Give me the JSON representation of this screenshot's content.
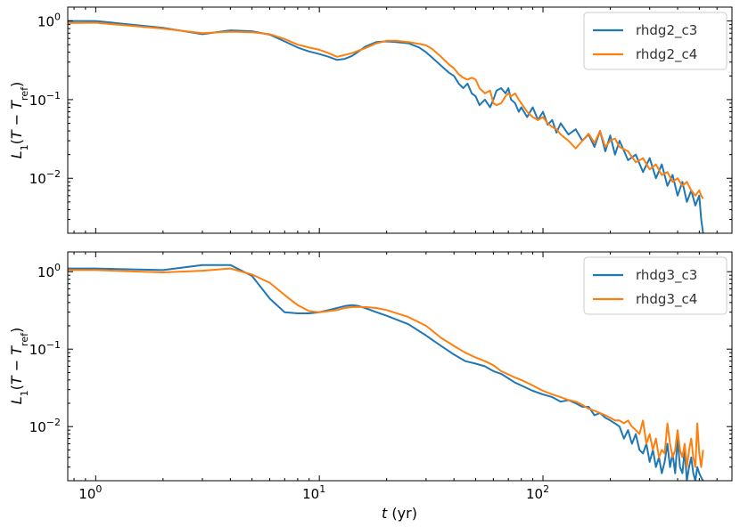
{
  "chart_data": [
    {
      "type": "line",
      "xscale": "log",
      "yscale": "log",
      "xlim": [
        0.75,
        700
      ],
      "ylim": [
        0.002,
        1.5
      ],
      "ylabel": "L1(T − Tref)",
      "xlabel": "",
      "legend_position": "top-right",
      "xticks": [
        {
          "value": 1,
          "base": "10",
          "exp": "0"
        },
        {
          "value": 10,
          "base": "10",
          "exp": "1"
        },
        {
          "value": 100,
          "base": "10",
          "exp": "2"
        }
      ],
      "yticks": [
        {
          "value": 0.01,
          "base": "10",
          "exp": "−2"
        },
        {
          "value": 0.1,
          "base": "10",
          "exp": "−1"
        },
        {
          "value": 1,
          "base": "10",
          "exp": "0"
        }
      ],
      "series": [
        {
          "name": "rhdg2_c3",
          "color": "#1f77b4",
          "x": [
            0.75,
            1,
            2,
            3,
            4,
            5,
            6,
            7,
            8,
            9,
            10,
            11,
            12,
            13,
            14,
            15,
            16,
            18,
            20,
            22,
            25,
            28,
            30,
            32,
            35,
            38,
            40,
            42,
            44,
            46,
            48,
            50,
            52,
            55,
            58,
            60,
            62,
            65,
            68,
            70,
            72,
            75,
            78,
            80,
            85,
            90,
            95,
            100,
            105,
            110,
            115,
            120,
            130,
            140,
            150,
            160,
            170,
            180,
            190,
            200,
            210,
            220,
            240,
            260,
            280,
            300,
            320,
            340,
            360,
            380,
            400,
            420,
            440,
            460,
            480,
            500,
            510,
            520
          ],
          "y": [
            1.0,
            1.0,
            0.82,
            0.68,
            0.76,
            0.74,
            0.67,
            0.55,
            0.46,
            0.41,
            0.38,
            0.35,
            0.32,
            0.33,
            0.36,
            0.41,
            0.47,
            0.54,
            0.55,
            0.54,
            0.52,
            0.46,
            0.4,
            0.34,
            0.27,
            0.22,
            0.2,
            0.16,
            0.14,
            0.16,
            0.12,
            0.11,
            0.085,
            0.1,
            0.08,
            0.1,
            0.13,
            0.14,
            0.12,
            0.14,
            0.1,
            0.09,
            0.07,
            0.08,
            0.06,
            0.08,
            0.055,
            0.07,
            0.048,
            0.055,
            0.038,
            0.05,
            0.036,
            0.042,
            0.03,
            0.036,
            0.025,
            0.04,
            0.022,
            0.035,
            0.02,
            0.03,
            0.017,
            0.02,
            0.012,
            0.018,
            0.01,
            0.015,
            0.008,
            0.011,
            0.006,
            0.009,
            0.005,
            0.007,
            0.0045,
            0.006,
            0.003,
            0.002
          ]
        },
        {
          "name": "rhdg2_c4",
          "color": "#ff7f0e",
          "x": [
            0.75,
            1,
            2,
            3,
            4,
            5,
            6,
            7,
            8,
            9,
            10,
            11,
            12,
            13,
            14,
            15,
            16,
            18,
            20,
            22,
            25,
            28,
            30,
            32,
            35,
            38,
            40,
            42,
            44,
            46,
            48,
            50,
            52,
            55,
            58,
            60,
            62,
            65,
            68,
            70,
            72,
            75,
            78,
            80,
            85,
            90,
            95,
            100,
            105,
            110,
            115,
            120,
            130,
            140,
            150,
            160,
            170,
            180,
            190,
            200,
            210,
            220,
            240,
            260,
            280,
            300,
            320,
            340,
            360,
            380,
            400,
            420,
            440,
            460,
            480,
            500,
            510,
            520
          ],
          "y": [
            0.94,
            0.95,
            0.8,
            0.7,
            0.73,
            0.72,
            0.68,
            0.59,
            0.5,
            0.46,
            0.43,
            0.39,
            0.35,
            0.37,
            0.39,
            0.42,
            0.45,
            0.52,
            0.56,
            0.56,
            0.54,
            0.51,
            0.49,
            0.44,
            0.35,
            0.28,
            0.25,
            0.21,
            0.19,
            0.18,
            0.19,
            0.18,
            0.14,
            0.12,
            0.13,
            0.09,
            0.085,
            0.09,
            0.11,
            0.12,
            0.11,
            0.12,
            0.1,
            0.09,
            0.07,
            0.06,
            0.055,
            0.06,
            0.05,
            0.045,
            0.042,
            0.036,
            0.03,
            0.024,
            0.03,
            0.037,
            0.028,
            0.04,
            0.025,
            0.03,
            0.032,
            0.025,
            0.022,
            0.016,
            0.018,
            0.013,
            0.015,
            0.011,
            0.012,
            0.009,
            0.01,
            0.008,
            0.009,
            0.007,
            0.006,
            0.007,
            0.006,
            0.0055
          ]
        }
      ]
    },
    {
      "type": "line",
      "xscale": "log",
      "yscale": "log",
      "xlim": [
        0.75,
        700
      ],
      "ylim": [
        0.002,
        1.8
      ],
      "ylabel": "L1(T − Tref)",
      "xlabel": "t (yr)",
      "legend_position": "top-right",
      "xticks": [
        {
          "value": 1,
          "base": "10",
          "exp": "0"
        },
        {
          "value": 10,
          "base": "10",
          "exp": "1"
        },
        {
          "value": 100,
          "base": "10",
          "exp": "2"
        }
      ],
      "yticks": [
        {
          "value": 0.01,
          "base": "10",
          "exp": "−2"
        },
        {
          "value": 0.1,
          "base": "10",
          "exp": "−1"
        },
        {
          "value": 1,
          "base": "10",
          "exp": "0"
        }
      ],
      "series": [
        {
          "name": "rhdg3_c3",
          "color": "#1f77b4",
          "x": [
            0.75,
            1,
            2,
            3,
            4,
            5,
            6,
            7,
            8,
            9,
            10,
            11,
            12,
            13,
            14,
            15,
            16,
            18,
            20,
            25,
            30,
            35,
            40,
            45,
            50,
            55,
            60,
            65,
            70,
            75,
            80,
            90,
            100,
            110,
            120,
            130,
            140,
            150,
            160,
            170,
            180,
            190,
            200,
            210,
            220,
            230,
            240,
            250,
            260,
            270,
            280,
            290,
            300,
            310,
            320,
            330,
            340,
            350,
            360,
            370,
            380,
            390,
            400,
            410,
            420,
            430,
            440,
            450,
            460,
            470,
            480,
            490,
            500,
            510,
            520
          ],
          "y": [
            1.1,
            1.1,
            1.05,
            1.22,
            1.22,
            0.88,
            0.45,
            0.3,
            0.29,
            0.29,
            0.3,
            0.32,
            0.34,
            0.36,
            0.37,
            0.36,
            0.34,
            0.3,
            0.27,
            0.21,
            0.15,
            0.11,
            0.085,
            0.07,
            0.065,
            0.06,
            0.052,
            0.048,
            0.042,
            0.037,
            0.034,
            0.029,
            0.026,
            0.024,
            0.021,
            0.022,
            0.02,
            0.018,
            0.018,
            0.014,
            0.015,
            0.013,
            0.012,
            0.011,
            0.01,
            0.007,
            0.009,
            0.006,
            0.008,
            0.005,
            0.0045,
            0.006,
            0.0035,
            0.005,
            0.003,
            0.004,
            0.0025,
            0.0035,
            0.006,
            0.003,
            0.0045,
            0.0025,
            0.007,
            0.003,
            0.0025,
            0.005,
            0.002,
            0.003,
            0.004,
            0.0025,
            0.002,
            0.003,
            0.0025,
            0.0022,
            0.002
          ]
        },
        {
          "name": "rhdg3_c4",
          "color": "#ff7f0e",
          "x": [
            0.75,
            1,
            2,
            3,
            4,
            5,
            6,
            7,
            8,
            9,
            10,
            11,
            12,
            13,
            14,
            15,
            16,
            18,
            20,
            25,
            30,
            35,
            40,
            45,
            50,
            55,
            60,
            65,
            70,
            75,
            80,
            90,
            100,
            110,
            120,
            130,
            140,
            150,
            160,
            170,
            180,
            190,
            200,
            210,
            220,
            230,
            240,
            250,
            260,
            270,
            280,
            290,
            300,
            310,
            320,
            330,
            340,
            350,
            360,
            370,
            380,
            390,
            400,
            410,
            420,
            430,
            440,
            450,
            460,
            470,
            480,
            490,
            500,
            510,
            520
          ],
          "y": [
            1.05,
            1.05,
            0.98,
            1.03,
            1.1,
            0.92,
            0.72,
            0.5,
            0.37,
            0.31,
            0.3,
            0.31,
            0.32,
            0.34,
            0.35,
            0.35,
            0.35,
            0.34,
            0.32,
            0.26,
            0.2,
            0.14,
            0.11,
            0.09,
            0.078,
            0.07,
            0.062,
            0.052,
            0.047,
            0.043,
            0.04,
            0.034,
            0.029,
            0.026,
            0.024,
            0.022,
            0.021,
            0.019,
            0.017,
            0.016,
            0.015,
            0.014,
            0.013,
            0.012,
            0.012,
            0.011,
            0.012,
            0.01,
            0.009,
            0.008,
            0.012,
            0.006,
            0.008,
            0.005,
            0.007,
            0.004,
            0.005,
            0.0045,
            0.011,
            0.006,
            0.004,
            0.005,
            0.009,
            0.005,
            0.004,
            0.006,
            0.003,
            0.005,
            0.007,
            0.004,
            0.003,
            0.011,
            0.0045,
            0.003,
            0.005
          ]
        }
      ]
    }
  ]
}
